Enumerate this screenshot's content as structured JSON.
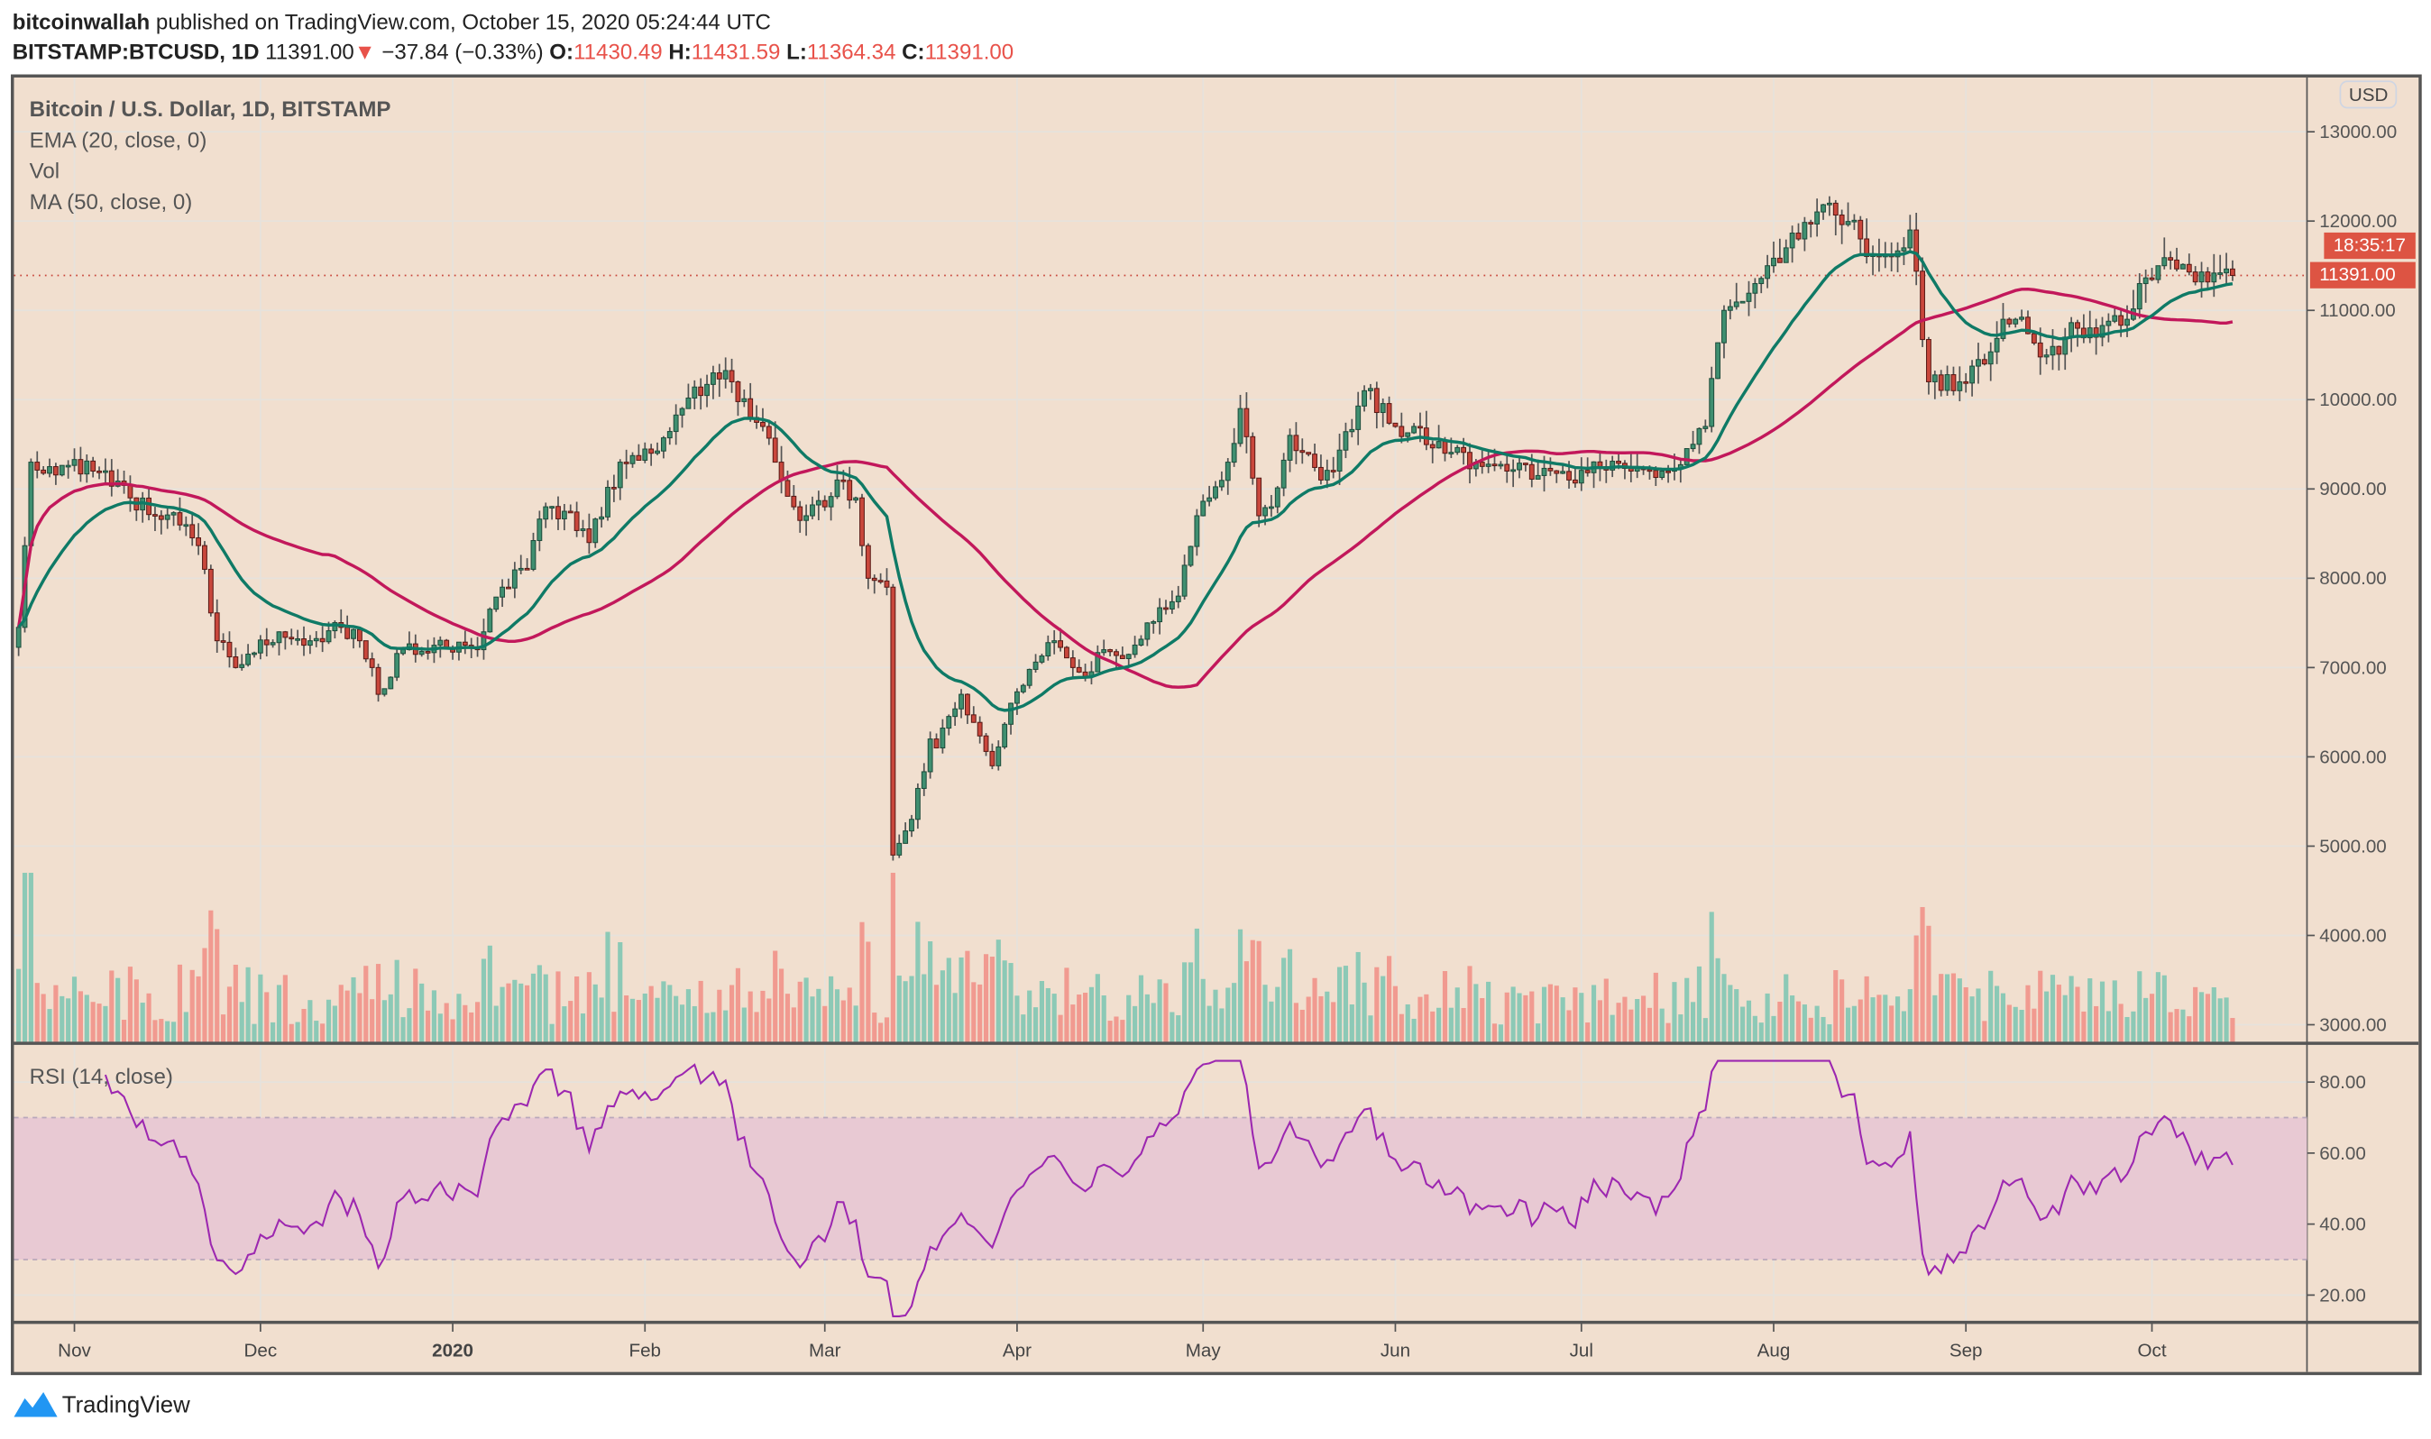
{
  "header": {
    "author": "bitcoinwallah",
    "published": "published on TradingView.com, October 15, 2020 05:24:44 UTC",
    "symbol": "BITSTAMP:BTCUSD, 1D",
    "last": "11391.00",
    "change": "−37.84 (−0.33%)",
    "o_label": "O:",
    "o": "11430.49",
    "h_label": "H:",
    "h": "11431.59",
    "l_label": "L:",
    "l": "11364.34",
    "c_label": "C:",
    "c": "11391.00"
  },
  "legend": {
    "title": "Bitcoin / U.S. Dollar, 1D, BITSTAMP",
    "ema": "EMA (20, close, 0)",
    "vol": "Vol",
    "ma": "MA (50, close, 0)",
    "rsi": "RSI (14, close)"
  },
  "axis": {
    "currency": "USD",
    "price_tag": "11391.00",
    "countdown": "18:35:17"
  },
  "footer": {
    "brand": "TradingView"
  },
  "colors": {
    "up": "#3f8f70",
    "down": "#c9473c",
    "ema": "#0f7a66",
    "ma": "#c2185b",
    "rsi": "#9c27b0",
    "tag": "#dd5443"
  },
  "chart_data": [
    {
      "type": "candlestick",
      "title": "Bitcoin / U.S. Dollar, 1D, BITSTAMP",
      "start_date": "2019-10-23",
      "ylim": [
        2700,
        13500
      ],
      "yticks": [
        3000,
        4000,
        5000,
        6000,
        7000,
        8000,
        9000,
        10000,
        11000,
        12000,
        13000
      ],
      "xticks": [
        {
          "date": "2019-11-01",
          "label": "Nov"
        },
        {
          "date": "2019-12-01",
          "label": "Dec"
        },
        {
          "date": "2020-01-01",
          "label": "2020",
          "bold": true
        },
        {
          "date": "2020-02-01",
          "label": "Feb"
        },
        {
          "date": "2020-03-01",
          "label": "Mar"
        },
        {
          "date": "2020-04-01",
          "label": "Apr"
        },
        {
          "date": "2020-05-01",
          "label": "May"
        },
        {
          "date": "2020-06-01",
          "label": "Jun"
        },
        {
          "date": "2020-07-01",
          "label": "Jul"
        },
        {
          "date": "2020-08-01",
          "label": "Aug"
        },
        {
          "date": "2020-09-01",
          "label": "Sep"
        },
        {
          "date": "2020-10-01",
          "label": "Oct"
        }
      ],
      "close_keypoints_day": [
        0,
        2,
        5,
        12,
        18,
        22,
        27,
        30,
        32,
        35,
        37,
        42,
        47,
        52,
        55,
        57,
        58,
        62,
        67,
        72,
        74,
        75,
        78,
        82,
        85,
        88,
        92,
        97,
        102,
        107,
        112,
        115,
        118,
        120,
        122,
        125,
        127,
        130,
        132,
        135,
        137,
        140,
        141,
        144,
        147,
        148,
        152,
        157,
        160,
        162,
        167,
        170,
        172,
        175,
        178,
        182,
        187,
        190,
        192,
        195,
        197,
        200,
        202,
        205,
        210,
        212,
        217,
        222,
        225,
        230,
        235,
        240,
        245,
        250,
        255,
        260,
        265,
        270,
        272,
        275,
        278,
        280,
        282,
        285,
        287,
        292,
        297,
        300,
        302,
        304,
        305,
        308,
        313,
        317,
        320,
        322,
        327,
        330,
        332,
        335,
        340,
        342,
        345,
        350,
        352,
        355,
        357
      ],
      "close_keypoints": [
        7450,
        9300,
        9250,
        9200,
        8900,
        8700,
        8600,
        8100,
        7300,
        7000,
        7150,
        7400,
        7300,
        7450,
        7300,
        7000,
        6700,
        7200,
        7250,
        7250,
        7200,
        7400,
        7900,
        8100,
        8800,
        8750,
        8400,
        9300,
        9400,
        9900,
        10300,
        10200,
        9800,
        9700,
        9300,
        8800,
        8700,
        8800,
        9100,
        8900,
        8000,
        7900,
        4900,
        5300,
        6200,
        6100,
        6700,
        5900,
        6600,
        6800,
        7300,
        7000,
        6900,
        7200,
        7100,
        7500,
        7800,
        8700,
        8900,
        9300,
        9900,
        8700,
        8800,
        9600,
        9100,
        9200,
        10100,
        9700,
        9700,
        9400,
        9300,
        9200,
        9150,
        9100,
        9250,
        9200,
        9200,
        9500,
        9700,
        11000,
        11100,
        11300,
        11500,
        11700,
        11800,
        12200,
        11800,
        11600,
        11600,
        11700,
        11900,
        10200,
        10200,
        10400,
        10900,
        10900,
        10500,
        10700,
        10800,
        10700,
        10900,
        11300,
        11500,
        11430,
        11430,
        11420,
        11391
      ],
      "indicators": [
        "EMA (20, close, 0)",
        "MA (50, close, 0)",
        "Vol",
        "RSI (14, close)"
      ],
      "current_price": 11391.0
    },
    {
      "type": "line",
      "title": "RSI (14, close)",
      "ylim": [
        12,
        88
      ],
      "yticks": [
        20,
        40,
        60,
        80
      ],
      "bands": [
        30,
        70
      ]
    }
  ]
}
